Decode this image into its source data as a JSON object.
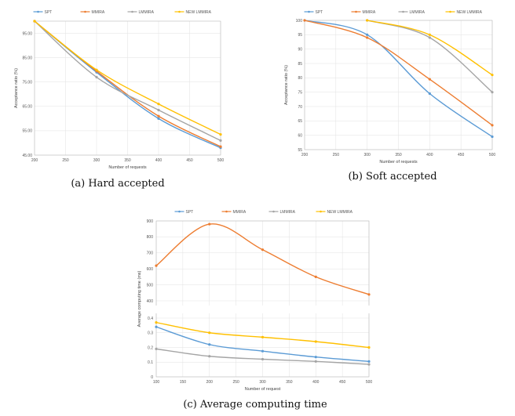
{
  "colors": {
    "SPT": "#5b9bd5",
    "MMIRA": "#ed7d31",
    "LMMIRA": "#a5a5a5",
    "NEW LMMIRA": "#ffc000"
  },
  "chart_data": [
    {
      "type": "line",
      "caption": "(a) Hard accepted",
      "xlabel": "Number of requests",
      "ylabel": "Acceptance ratio (%)",
      "xticks": [
        "200",
        "250",
        "300",
        "350",
        "400",
        "450",
        "500"
      ],
      "xlim": [
        200,
        500
      ],
      "yticks": [
        "45.00",
        "55.00",
        "65.00",
        "75.00",
        "85.00",
        "95.00"
      ],
      "ylim": [
        45,
        100
      ],
      "x": [
        200,
        300,
        400,
        500
      ],
      "series": [
        {
          "name": "SPT",
          "values": [
            100,
            79,
            60,
            48
          ]
        },
        {
          "name": "MMIRA",
          "values": [
            100,
            79.5,
            61,
            48.5
          ]
        },
        {
          "name": "LMMIRA",
          "values": [
            100,
            77,
            63.5,
            51
          ]
        },
        {
          "name": "NEW LMMIRA",
          "values": [
            100,
            80,
            66,
            53.5
          ]
        }
      ],
      "legend": "top",
      "grid": true
    },
    {
      "type": "line",
      "caption": "(b) Soft accepted",
      "xlabel": "Number of requests",
      "ylabel": "Acceptance ratio (%)",
      "xticks": [
        "200",
        "250",
        "300",
        "350",
        "400",
        "450",
        "500"
      ],
      "xlim": [
        200,
        500
      ],
      "yticks": [
        "55",
        "60",
        "65",
        "70",
        "75",
        "80",
        "85",
        "90",
        "95",
        "100"
      ],
      "ylim": [
        55,
        100
      ],
      "x": [
        200,
        300,
        400,
        500
      ],
      "series": [
        {
          "name": "SPT",
          "values": [
            100,
            95,
            74.5,
            59.5
          ]
        },
        {
          "name": "MMIRA",
          "values": [
            100,
            94,
            79.5,
            63.5
          ]
        },
        {
          "name": "LMMIRA",
          "values": [
            null,
            100,
            94,
            75
          ]
        },
        {
          "name": "NEW LMMIRA",
          "values": [
            null,
            100,
            95,
            81
          ]
        }
      ],
      "legend": "top",
      "grid": true
    },
    {
      "type": "line",
      "caption": "(c) Average computing time",
      "xlabel": "Number of request",
      "ylabel": "Average computing time (ms)",
      "xticks": [
        "100",
        "150",
        "200",
        "250",
        "300",
        "350",
        "400",
        "450",
        "500"
      ],
      "xlim": [
        100,
        500
      ],
      "yticks_low": [
        "0",
        "0.1",
        "0.2",
        "0.3",
        "0.4"
      ],
      "ylim_low": [
        0,
        0.4
      ],
      "yticks_high": [
        "400",
        "500",
        "600",
        "700",
        "800",
        "900"
      ],
      "ylim_high": [
        400,
        900
      ],
      "axis_break": true,
      "x": [
        100,
        200,
        300,
        400,
        500
      ],
      "series": [
        {
          "name": "SPT",
          "values": [
            0.34,
            0.22,
            0.175,
            0.135,
            0.105
          ]
        },
        {
          "name": "MMIRA",
          "values": [
            620,
            880,
            720,
            550,
            440
          ]
        },
        {
          "name": "LMMIRA",
          "values": [
            0.19,
            0.14,
            0.12,
            0.105,
            0.085
          ]
        },
        {
          "name": "NEW LMMIRA",
          "values": [
            0.37,
            0.3,
            0.27,
            0.24,
            0.2
          ]
        }
      ],
      "legend": "top",
      "grid": true
    }
  ]
}
